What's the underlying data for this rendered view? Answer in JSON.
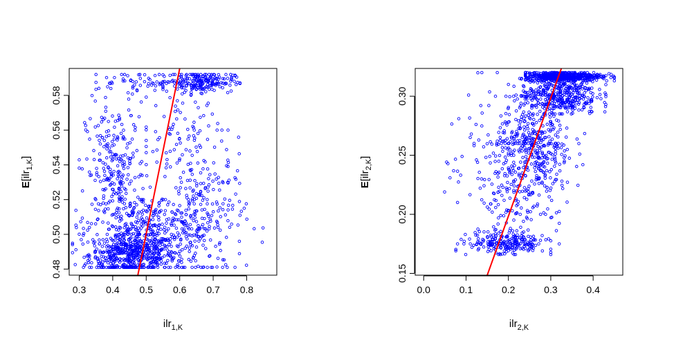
{
  "chart_data": [
    {
      "type": "scatter",
      "xlabel": {
        "base": "ilr",
        "sub": "1,K"
      },
      "ylabel": {
        "prefix": "E",
        "open": "[",
        "base": "ilr",
        "sub": "1,K",
        "close": "]"
      },
      "xlim": [
        0.27,
        0.89
      ],
      "ylim": [
        0.4765,
        0.5955
      ],
      "xticks": [
        0.3,
        0.4,
        0.5,
        0.6,
        0.7,
        0.8
      ],
      "yticks": [
        0.48,
        0.5,
        0.52,
        0.54,
        0.56,
        0.58
      ],
      "xtick_labels": [
        "0.3",
        "0.4",
        "0.5",
        "0.6",
        "0.7",
        "0.8"
      ],
      "ytick_labels": [
        "0.48",
        "0.50",
        "0.52",
        "0.54",
        "0.56",
        "0.58"
      ],
      "point_color": "#0000ff",
      "line_color": "#ff0000",
      "fit_line": {
        "x": [
          0.475,
          0.6
        ],
        "y": [
          0.4765,
          0.5955
        ]
      },
      "clusters": [
        {
          "n": 520,
          "x_mean": 0.46,
          "x_sd": 0.065,
          "y_mean": 0.488,
          "y_sd": 0.006,
          "x_range": [
            0.28,
            0.7
          ],
          "y_range": [
            0.481,
            0.5
          ]
        },
        {
          "n": 320,
          "x_mean": 0.5,
          "x_sd": 0.09,
          "y_mean": 0.503,
          "y_sd": 0.01,
          "x_range": [
            0.29,
            0.78
          ],
          "y_range": [
            0.481,
            0.52
          ]
        },
        {
          "n": 260,
          "x_mean": 0.41,
          "x_sd": 0.045,
          "y_mean": 0.535,
          "y_sd": 0.02,
          "x_range": [
            0.3,
            0.55
          ],
          "y_range": [
            0.49,
            0.58
          ]
        },
        {
          "n": 220,
          "x_mean": 0.67,
          "x_sd": 0.065,
          "y_mean": 0.51,
          "y_sd": 0.02,
          "x_range": [
            0.52,
            0.86
          ],
          "y_range": [
            0.481,
            0.56
          ]
        },
        {
          "n": 200,
          "x_mean": 0.66,
          "x_sd": 0.05,
          "y_mean": 0.588,
          "y_sd": 0.003,
          "x_range": [
            0.55,
            0.78
          ],
          "y_range": [
            0.58,
            0.592
          ]
        },
        {
          "n": 90,
          "x_mean": 0.6,
          "x_sd": 0.06,
          "y_mean": 0.555,
          "y_sd": 0.015,
          "x_range": [
            0.5,
            0.74
          ],
          "y_range": [
            0.52,
            0.585
          ]
        },
        {
          "n": 60,
          "x_mean": 0.48,
          "x_sd": 0.06,
          "y_mean": 0.588,
          "y_sd": 0.003,
          "x_range": [
            0.35,
            0.6
          ],
          "y_range": [
            0.58,
            0.592
          ]
        }
      ]
    },
    {
      "type": "scatter",
      "xlabel": {
        "base": "ilr",
        "sub": "2,K"
      },
      "ylabel": {
        "prefix": "E",
        "open": "[",
        "base": "ilr",
        "sub": "2,K",
        "close": "]"
      },
      "xlim": [
        -0.02,
        0.47
      ],
      "ylim": [
        0.1485,
        0.3235
      ],
      "xticks": [
        0.0,
        0.1,
        0.2,
        0.3,
        0.4
      ],
      "yticks": [
        0.15,
        0.2,
        0.25,
        0.3
      ],
      "xtick_labels": [
        "0.0",
        "0.1",
        "0.2",
        "0.3",
        "0.4"
      ],
      "ytick_labels": [
        "0.15",
        "0.20",
        "0.25",
        "0.30"
      ],
      "point_color": "#0000ff",
      "line_color": "#ff0000",
      "fit_line": {
        "x": [
          0.15,
          0.325
        ],
        "y": [
          0.1485,
          0.3235
        ]
      },
      "clusters": [
        {
          "n": 520,
          "x_mean": 0.33,
          "x_sd": 0.045,
          "y_mean": 0.317,
          "y_sd": 0.002,
          "x_range": [
            0.24,
            0.45
          ],
          "y_range": [
            0.313,
            0.32
          ]
        },
        {
          "n": 420,
          "x_mean": 0.32,
          "x_sd": 0.045,
          "y_mean": 0.302,
          "y_sd": 0.009,
          "x_range": [
            0.2,
            0.43
          ],
          "y_range": [
            0.285,
            0.315
          ]
        },
        {
          "n": 420,
          "x_mean": 0.26,
          "x_sd": 0.045,
          "y_mean": 0.255,
          "y_sd": 0.022,
          "x_range": [
            0.12,
            0.38
          ],
          "y_range": [
            0.2,
            0.3
          ]
        },
        {
          "n": 150,
          "x_mean": 0.2,
          "x_sd": 0.05,
          "y_mean": 0.215,
          "y_sd": 0.03,
          "x_range": [
            0.08,
            0.32
          ],
          "y_range": [
            0.175,
            0.26
          ]
        },
        {
          "n": 210,
          "x_mean": 0.2,
          "x_sd": 0.045,
          "y_mean": 0.175,
          "y_sd": 0.005,
          "x_range": [
            0.06,
            0.3
          ],
          "y_range": [
            0.166,
            0.19
          ]
        },
        {
          "n": 40,
          "x_mean": 0.13,
          "x_sd": 0.04,
          "y_mean": 0.26,
          "y_sd": 0.04,
          "x_range": [
            0.0,
            0.2
          ],
          "y_range": [
            0.17,
            0.32
          ]
        }
      ]
    }
  ]
}
